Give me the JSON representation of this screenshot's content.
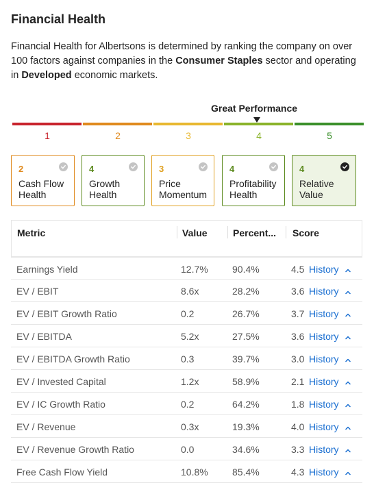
{
  "header": {
    "title": "Financial Health",
    "desc_part1": "Financial Health for Albertsons is determined by ranking the company on over 100 factors against companies in the ",
    "desc_bold1": "Consumer Staples",
    "desc_part2": " sector and operating in ",
    "desc_bold2": "Developed",
    "desc_part3": " economic markets."
  },
  "scale": {
    "label": "Great Performance",
    "steps": [
      {
        "num": "1",
        "color": "#c8232c"
      },
      {
        "num": "2",
        "color": "#e08a1e"
      },
      {
        "num": "3",
        "color": "#e8b830"
      },
      {
        "num": "4",
        "color": "#8ab32a"
      },
      {
        "num": "5",
        "color": "#3a8f2a"
      }
    ]
  },
  "cards": [
    {
      "score": "2",
      "label": "Cash Flow Health",
      "color": "#e08a1e",
      "checked": false
    },
    {
      "score": "4",
      "label": "Growth Health",
      "color": "#5c8a1e",
      "checked": false
    },
    {
      "score": "3",
      "label": "Price Momentum",
      "color": "#e0a020",
      "checked": false
    },
    {
      "score": "4",
      "label": "Profitability Health",
      "color": "#5c8a1e",
      "checked": false
    },
    {
      "score": "4",
      "label": "Relative Value",
      "color": "#5c8a1e",
      "checked": true
    }
  ],
  "table": {
    "headers": {
      "metric": "Metric",
      "value": "Value",
      "percentile": "Percent...",
      "score": "Score"
    },
    "history_label": "History",
    "rows": [
      {
        "metric": "Earnings Yield",
        "value": "12.7%",
        "percentile": "90.4%",
        "score": "4.5"
      },
      {
        "metric": "EV / EBIT",
        "value": "8.6x",
        "percentile": "28.2%",
        "score": "3.6"
      },
      {
        "metric": "EV / EBIT Growth Ratio",
        "value": "0.2",
        "percentile": "26.7%",
        "score": "3.7"
      },
      {
        "metric": "EV / EBITDA",
        "value": "5.2x",
        "percentile": "27.5%",
        "score": "3.6"
      },
      {
        "metric": "EV / EBITDA Growth Ratio",
        "value": "0.3",
        "percentile": "39.7%",
        "score": "3.0"
      },
      {
        "metric": "EV / Invested Capital",
        "value": "1.2x",
        "percentile": "58.9%",
        "score": "2.1"
      },
      {
        "metric": "EV / IC Growth Ratio",
        "value": "0.2",
        "percentile": "64.2%",
        "score": "1.8"
      },
      {
        "metric": "EV / Revenue",
        "value": "0.3x",
        "percentile": "19.3%",
        "score": "4.0"
      },
      {
        "metric": "EV / Revenue Growth Ratio",
        "value": "0.0",
        "percentile": "34.6%",
        "score": "3.3"
      },
      {
        "metric": "Free Cash Flow Yield",
        "value": "10.8%",
        "percentile": "85.4%",
        "score": "4.3"
      }
    ]
  }
}
